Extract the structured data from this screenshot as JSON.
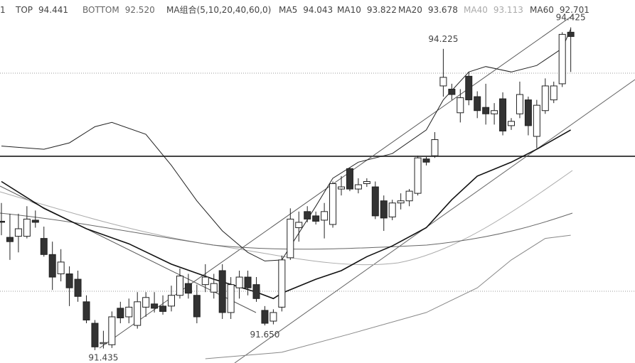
{
  "header": {
    "items": [
      {
        "name": "1",
        "color": "#444"
      },
      {
        "name": "TOP",
        "value": "94.441",
        "color": "#444"
      },
      {
        "name": "BOTTOM",
        "value": "92.520",
        "color": "#666"
      },
      {
        "name": "MA组合(5,10,20,40,60,0)",
        "color": "#444"
      },
      {
        "name": "MA5",
        "value": "94.043",
        "color": "#444"
      },
      {
        "name": "MA10",
        "value": "93.822",
        "color": "#444"
      },
      {
        "name": "MA20",
        "value": "93.678",
        "color": "#444"
      },
      {
        "name": "MA40",
        "value": "93.113",
        "color": "#aaa"
      },
      {
        "name": "MA60",
        "value": "92.701",
        "color": "#444"
      }
    ]
  },
  "chart_data": {
    "type": "candlestick",
    "open": [
      92.62,
      92.47,
      92.48,
      92.48,
      92.63,
      92.46,
      92.31,
      92.13,
      92.13,
      92.08,
      91.87,
      91.67,
      91.48,
      91.47,
      91.81,
      91.73,
      91.65,
      91.82,
      91.85,
      91.83,
      91.83,
      91.93,
      92.04,
      91.93,
      92.03,
      91.96,
      92.16,
      91.77,
      92.0,
      92.1,
      92.03,
      91.79,
      91.69,
      91.82,
      92.28,
      92.56,
      92.71,
      92.67,
      92.63,
      92.59,
      92.92,
      93.11,
      92.92,
      92.97,
      92.94,
      92.81,
      92.66,
      92.79,
      92.81,
      92.88,
      93.2,
      93.23,
      93.88,
      93.85,
      93.63,
      93.97,
      93.78,
      93.68,
      93.62,
      93.76,
      93.51,
      93.62,
      93.75,
      93.41,
      93.65,
      93.75,
      93.9,
      94.38
    ],
    "high": [
      92.79,
      92.69,
      92.69,
      92.76,
      92.72,
      92.57,
      92.43,
      92.36,
      92.2,
      92.16,
      91.93,
      91.7,
      91.6,
      91.78,
      91.87,
      91.9,
      91.96,
      91.96,
      91.96,
      91.93,
      92.02,
      92.18,
      92.13,
      92.03,
      92.22,
      92.13,
      92.22,
      92.1,
      92.16,
      92.16,
      92.1,
      91.83,
      91.8,
      92.3,
      92.74,
      92.71,
      92.76,
      92.71,
      92.79,
      92.99,
      93.04,
      93.12,
      93.02,
      93.02,
      92.99,
      92.86,
      92.82,
      92.88,
      92.92,
      93.23,
      93.22,
      93.45,
      94.225,
      93.9,
      93.85,
      94.01,
      93.83,
      93.9,
      93.72,
      93.82,
      93.58,
      93.92,
      93.78,
      93.75,
      93.95,
      93.92,
      94.38,
      94.425
    ],
    "low": [
      92.49,
      92.26,
      92.33,
      92.46,
      92.56,
      92.29,
      91.98,
      92.06,
      91.83,
      91.87,
      91.67,
      91.42,
      91.435,
      91.44,
      91.67,
      91.67,
      91.62,
      91.73,
      91.77,
      91.75,
      91.78,
      91.9,
      91.9,
      91.67,
      91.96,
      91.9,
      91.71,
      91.71,
      91.9,
      91.93,
      91.87,
      91.65,
      91.66,
      91.78,
      92.26,
      92.43,
      92.61,
      92.59,
      92.46,
      92.56,
      92.86,
      92.9,
      92.88,
      92.94,
      92.64,
      92.53,
      92.63,
      92.73,
      92.76,
      92.86,
      93.14,
      93.21,
      93.78,
      93.75,
      93.54,
      93.7,
      93.58,
      93.52,
      93.52,
      93.42,
      93.47,
      93.58,
      93.42,
      93.3,
      93.62,
      93.72,
      93.87,
      94.01
    ],
    "close": [
      92.61,
      92.43,
      92.55,
      92.64,
      92.61,
      92.31,
      92.1,
      92.24,
      92.0,
      91.92,
      91.7,
      91.45,
      91.49,
      91.73,
      91.72,
      91.82,
      91.87,
      91.91,
      91.81,
      91.78,
      91.93,
      92.11,
      91.95,
      91.73,
      92.1,
      92.04,
      91.77,
      92.03,
      92.1,
      92.0,
      91.9,
      91.67,
      91.77,
      92.26,
      92.64,
      92.61,
      92.64,
      92.62,
      92.71,
      92.97,
      92.94,
      92.92,
      92.96,
      92.99,
      92.67,
      92.65,
      92.79,
      92.81,
      92.9,
      93.21,
      93.17,
      93.38,
      93.96,
      93.8,
      93.77,
      93.75,
      93.65,
      93.62,
      93.65,
      93.46,
      93.55,
      93.8,
      93.51,
      93.7,
      93.88,
      93.88,
      94.36,
      94.34
    ],
    "up_color": "#ffffff",
    "down_color": "#333333",
    "candle_stroke": "#222222",
    "series": [
      {
        "color": "#222222",
        "width": 1,
        "x": [
          0,
          5,
          8,
          11,
          13,
          17,
          20,
          23,
          26,
          29,
          31,
          33,
          35,
          37,
          39,
          42,
          46,
          50,
          52,
          55,
          57,
          60,
          63,
          66,
          67
        ],
        "values": [
          93.32,
          93.29,
          93.35,
          93.5,
          93.54,
          93.43,
          93.14,
          92.81,
          92.53,
          92.33,
          92.25,
          92.26,
          92.51,
          92.76,
          93.02,
          93.17,
          93.25,
          93.47,
          93.75,
          94.01,
          94.06,
          94.01,
          94.07,
          94.23,
          94.41
        ]
      },
      {
        "color": "#111111",
        "width": 1.6,
        "x": [
          0,
          5,
          10,
          15,
          20,
          25,
          30,
          32,
          33,
          37,
          40,
          43,
          46,
          50,
          53,
          56,
          60,
          63,
          67
        ],
        "values": [
          92.99,
          92.74,
          92.55,
          92.41,
          92.22,
          92.08,
          91.96,
          91.9,
          91.95,
          92.08,
          92.16,
          92.29,
          92.39,
          92.56,
          92.82,
          93.04,
          93.17,
          93.29,
          93.47
        ]
      },
      {
        "color": "#888888",
        "width": 1,
        "x": [
          24,
          33,
          41,
          50,
          56,
          60,
          64,
          67
        ],
        "values": [
          91.34,
          91.4,
          91.57,
          91.77,
          92.0,
          92.26,
          92.46,
          92.49
        ]
      }
    ],
    "annotations": [
      {
        "label": "94.225",
        "value": 94.225
      },
      {
        "label": "94.425",
        "value": 94.425
      },
      {
        "label": "91.650",
        "value": 91.65
      },
      {
        "label": "91.435",
        "value": 91.435
      }
    ],
    "ylim": [
      91.3,
      94.68
    ]
  }
}
